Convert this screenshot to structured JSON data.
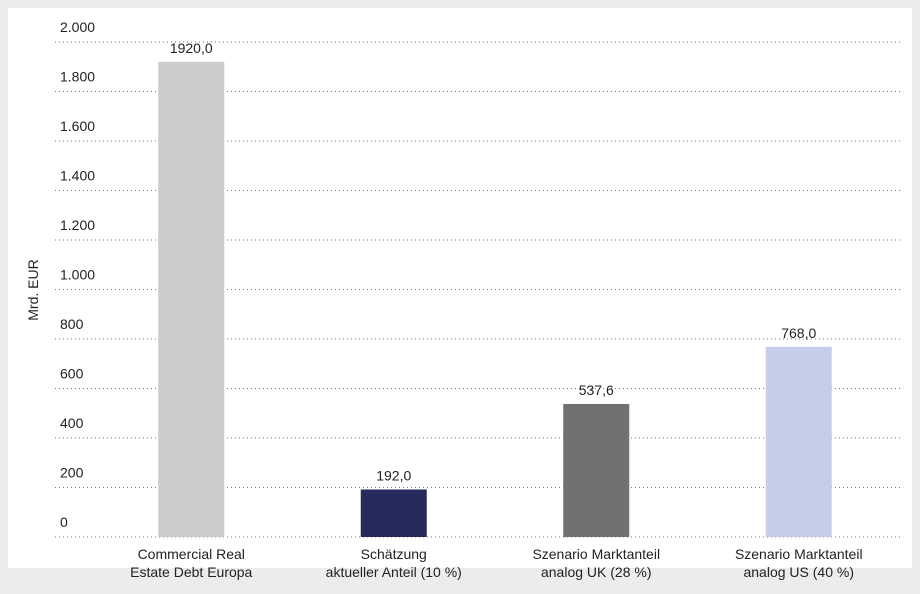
{
  "chart_data": {
    "type": "bar",
    "y_label": "Mrd. EUR",
    "categories": [
      [
        "Commercial Real",
        "Estate Debt Europa"
      ],
      [
        "Schätzung",
        "aktueller Anteil (10 %)"
      ],
      [
        "Szenario Marktanteil",
        "analog UK (28 %)"
      ],
      [
        "Szenario Marktanteil",
        "analog US (40 %)"
      ]
    ],
    "values": [
      1920.0,
      192.0,
      537.6,
      768.0
    ],
    "value_labels": [
      "1920,0",
      "192,0",
      "537,6",
      "768,0"
    ],
    "colors": [
      "#cccccc",
      "#262b5c",
      "#707070",
      "#c5cde8"
    ],
    "ylim": [
      0,
      2000
    ],
    "yticks": [
      0,
      200,
      400,
      600,
      800,
      {
        "value": 1000,
        "label": "1.000"
      },
      {
        "value": 1200,
        "label": "1.200"
      },
      {
        "value": 1400,
        "label": "1.400"
      },
      {
        "value": 1600,
        "label": "1.600"
      },
      {
        "value": 1800,
        "label": "1.800"
      },
      {
        "value": 2000,
        "label": "2.000"
      }
    ],
    "grid": true
  }
}
